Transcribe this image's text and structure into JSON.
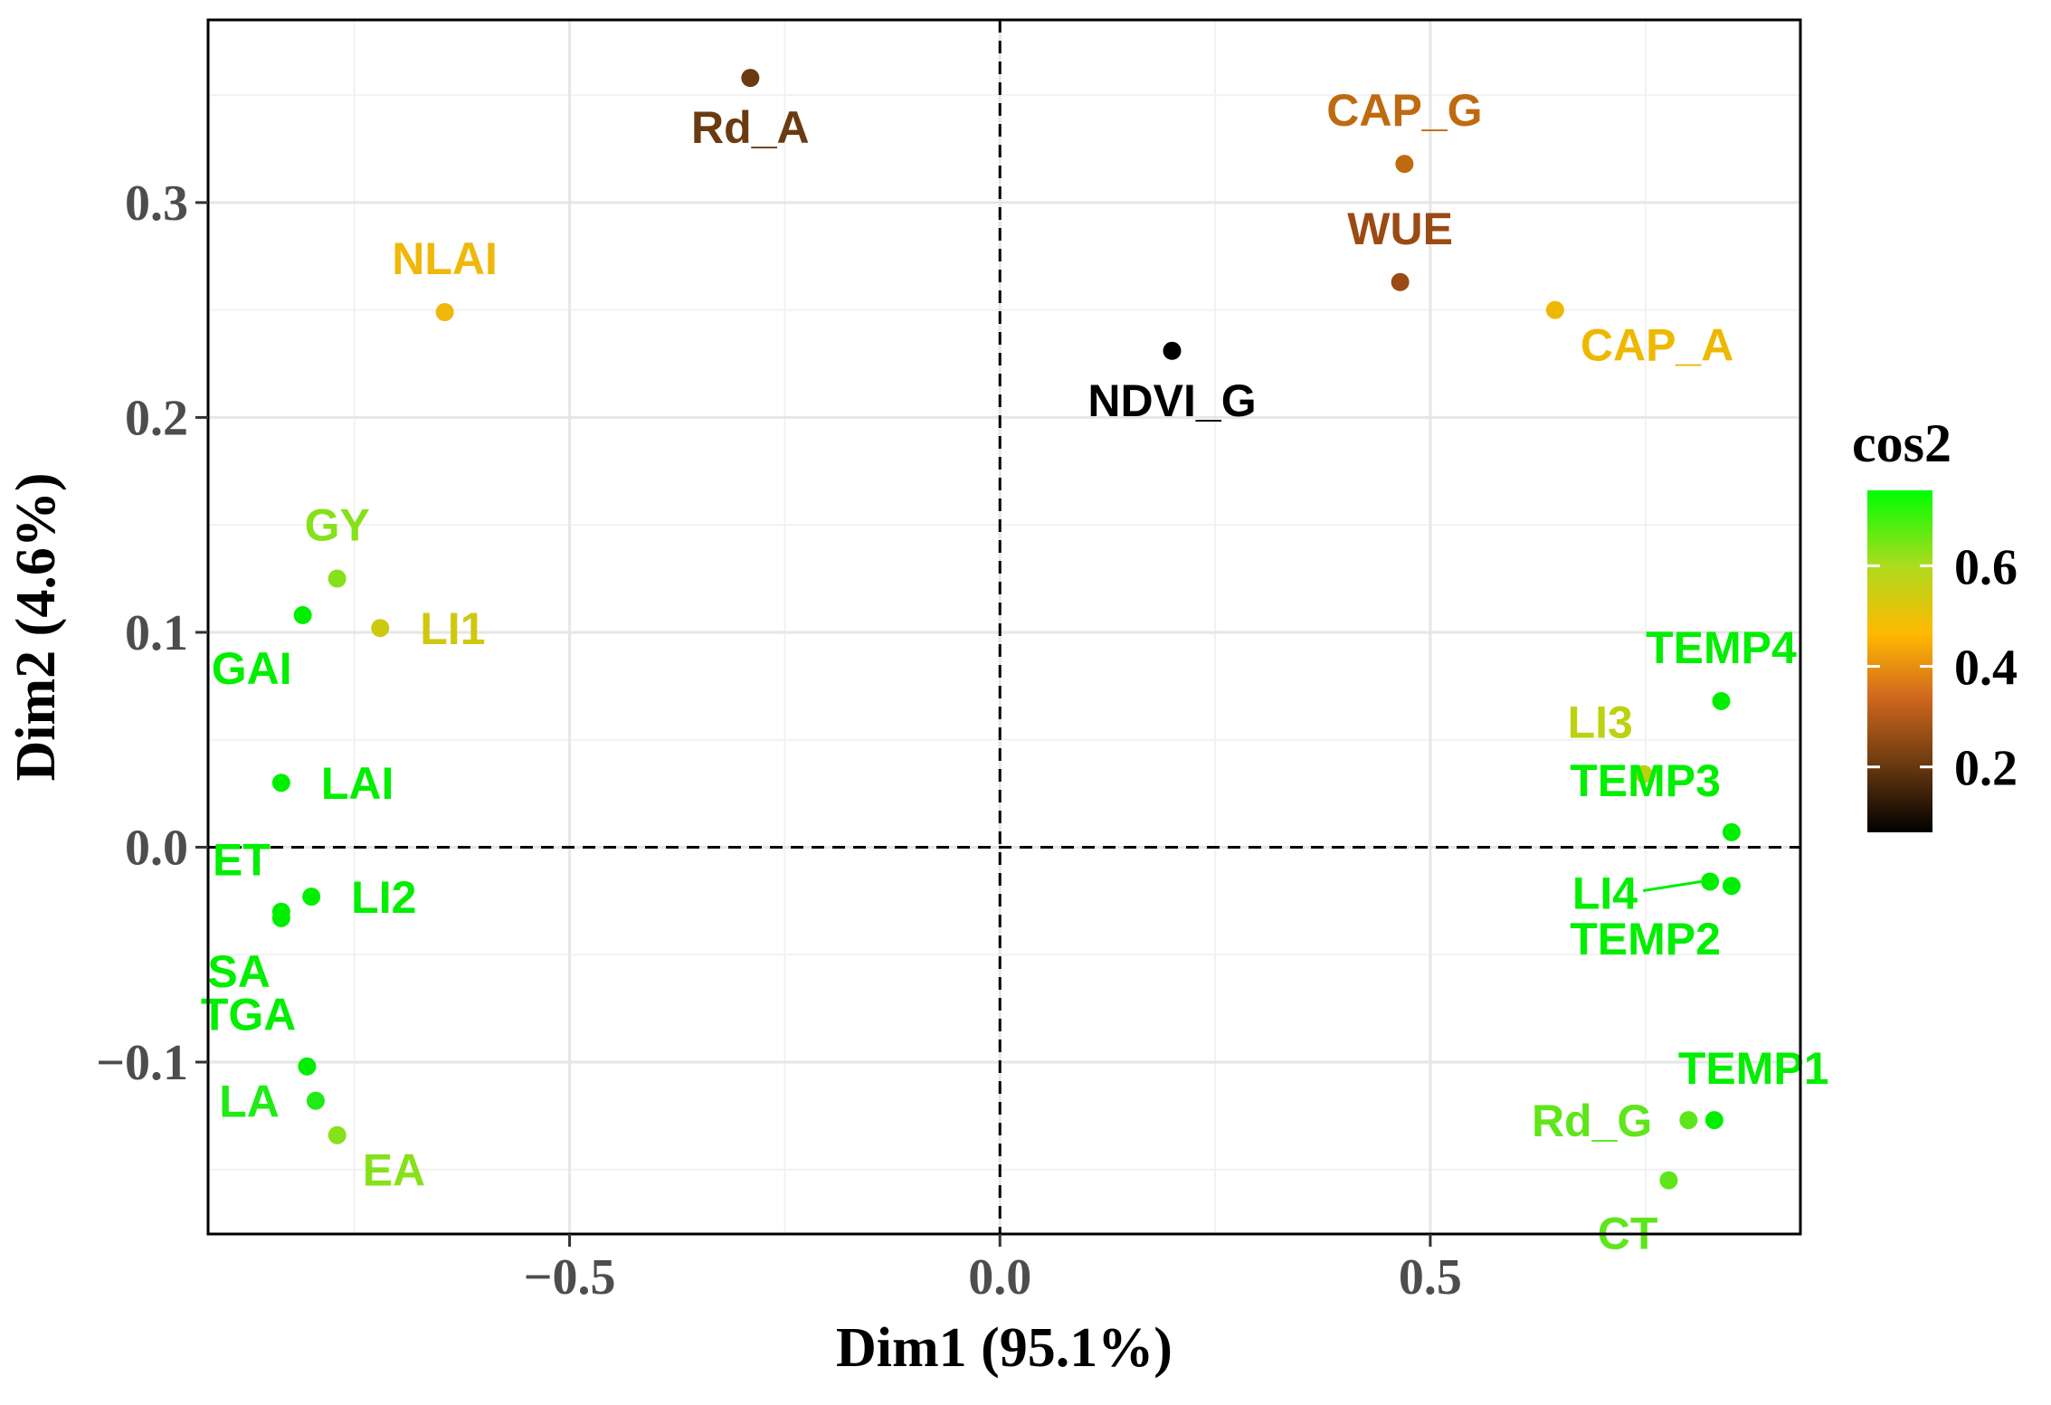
{
  "chart_data": {
    "type": "scatter",
    "title": "",
    "xlabel": "Dim1 (95.1%)",
    "ylabel": "Dim2 (4.6%)",
    "xlim": [
      -0.92,
      0.93
    ],
    "ylim": [
      -0.18,
      0.385
    ],
    "x_ticks": [
      -0.5,
      0.0,
      0.5
    ],
    "x_tick_labels": [
      "−0.5",
      "0.0",
      "0.5"
    ],
    "y_ticks": [
      -0.1,
      0.0,
      0.1,
      0.2,
      0.3
    ],
    "y_tick_labels": [
      "−0.1",
      "0.0",
      "0.1",
      "0.2",
      "0.3"
    ],
    "grid": true,
    "reference_lines": {
      "x": 0.0,
      "y": 0.0,
      "style": "dashed"
    },
    "legend": {
      "title": "cos2",
      "placement": "right",
      "range": [
        0.07,
        0.75
      ],
      "ticks": [
        0.2,
        0.4,
        0.6
      ],
      "tick_labels": [
        "0.2",
        "0.4",
        "0.6"
      ],
      "colors": [
        "#000000",
        "#8B4513",
        "#D2691E",
        "#FFB900",
        "#ADDB1E",
        "#00FF00"
      ]
    },
    "points": [
      {
        "label": "Rd_A",
        "x": -0.29,
        "y": 0.358,
        "cos2": 0.25,
        "color": "#6B3A10",
        "label_pos": "below"
      },
      {
        "label": "CAP_G",
        "x": 0.47,
        "y": 0.318,
        "cos2": 0.37,
        "color": "#C06A10",
        "label_pos": "above"
      },
      {
        "label": "WUE",
        "x": 0.465,
        "y": 0.263,
        "cos2": 0.33,
        "color": "#9A4A12",
        "label_pos": "above"
      },
      {
        "label": "NDVI_G",
        "x": 0.2,
        "y": 0.231,
        "cos2": 0.08,
        "color": "#000000",
        "label_pos": "below"
      },
      {
        "label": "CAP_A",
        "x": 0.645,
        "y": 0.25,
        "cos2": 0.45,
        "color": "#EEB800",
        "label_pos": "below-right"
      },
      {
        "label": "NLAI",
        "x": -0.645,
        "y": 0.249,
        "cos2": 0.45,
        "color": "#F0B80A",
        "label_pos": "above"
      },
      {
        "label": "GY",
        "x": -0.77,
        "y": 0.125,
        "cos2": 0.62,
        "color": "#86E11A",
        "label_pos": "above"
      },
      {
        "label": "GAI",
        "x": -0.81,
        "y": 0.108,
        "cos2": 0.72,
        "color": "#00EE00",
        "label_pos": "below-left"
      },
      {
        "label": "LI1",
        "x": -0.72,
        "y": 0.102,
        "cos2": 0.52,
        "color": "#CFC810",
        "label_pos": "right"
      },
      {
        "label": "LAI",
        "x": -0.835,
        "y": 0.03,
        "cos2": 0.72,
        "color": "#00EE00",
        "label_pos": "right"
      },
      {
        "label": "ET",
        "x": -0.835,
        "y": -0.03,
        "cos2": 0.72,
        "color": "#00EE00",
        "label_pos": "above-left"
      },
      {
        "label": "LI2",
        "x": -0.8,
        "y": -0.023,
        "cos2": 0.7,
        "color": "#00EE00",
        "label_pos": "right"
      },
      {
        "label": "SA",
        "x": -0.835,
        "y": -0.033,
        "cos2": 0.72,
        "color": "#00EE00",
        "label_pos": "below-left"
      },
      {
        "label": "TGA",
        "x": -0.805,
        "y": -0.102,
        "cos2": 0.72,
        "color": "#00EE00",
        "label_pos": "above-left"
      },
      {
        "label": "LA",
        "x": -0.795,
        "y": -0.118,
        "cos2": 0.7,
        "color": "#1EEC14",
        "label_pos": "left"
      },
      {
        "label": "EA",
        "x": -0.77,
        "y": -0.134,
        "cos2": 0.62,
        "color": "#86E11A",
        "label_pos": "below-right"
      },
      {
        "label": "TEMP4",
        "x": 0.838,
        "y": 0.068,
        "cos2": 0.72,
        "color": "#00EE00",
        "label_pos": "above"
      },
      {
        "label": "LI3",
        "x": 0.748,
        "y": 0.034,
        "cos2": 0.55,
        "color": "#BCD210",
        "label_pos": "above-left"
      },
      {
        "label": "TEMP3",
        "x": 0.85,
        "y": 0.007,
        "cos2": 0.72,
        "color": "#00EE00",
        "label_pos": "above-left"
      },
      {
        "label": "LI4",
        "x": 0.825,
        "y": -0.016,
        "cos2": 0.72,
        "color": "#00EE00",
        "label_pos": "left-leader"
      },
      {
        "label": "TEMP2",
        "x": 0.85,
        "y": -0.018,
        "cos2": 0.72,
        "color": "#00EE00",
        "label_pos": "below-left"
      },
      {
        "label": "TEMP1",
        "x": 0.83,
        "y": -0.127,
        "cos2": 0.72,
        "color": "#00EE00",
        "label_pos": "above-right"
      },
      {
        "label": "Rd_G",
        "x": 0.8,
        "y": -0.127,
        "cos2": 0.65,
        "color": "#5EE61A",
        "label_pos": "left"
      },
      {
        "label": "CT",
        "x": 0.777,
        "y": -0.155,
        "cos2": 0.65,
        "color": "#5EE61A",
        "label_pos": "below-left"
      }
    ]
  }
}
